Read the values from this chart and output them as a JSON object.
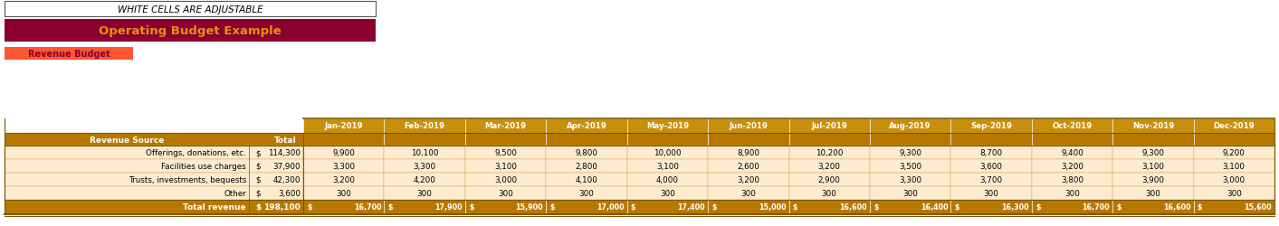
{
  "title_banner_text": "WHITE CELLS ARE ADJUSTABLE",
  "operating_title": "Operating Budget Example",
  "operating_bg": "#8B0030",
  "operating_text_color": "#E8900A",
  "revenue_budget_text": "Revenue Budget",
  "revenue_budget_bg": "#FF5533",
  "revenue_budget_text_color": "#8B0030",
  "months": [
    "Jan-2019",
    "Feb-2019",
    "Mar-2019",
    "Apr-2019",
    "May-2019",
    "Jun-2019",
    "Jul-2019",
    "Aug-2019",
    "Sep-2019",
    "Oct-2019",
    "Nov-2019",
    "Dec-2019"
  ],
  "month_header_bg": "#C8900A",
  "month_header_text_color": "#ffffff",
  "row_header_bg": "#B87800",
  "row_header_text_color": "#ffffff",
  "data_bg": "#FDEBD0",
  "total_row_bg": "#B87800",
  "total_row_text_color": "#ffffff",
  "row_labels": [
    "Offerings, donations, etc.",
    "Facilities use charges",
    "Trusts, investments, bequests",
    "Other"
  ],
  "totals": [
    "114,300",
    "37,900",
    "42,300",
    "3,600"
  ],
  "monthly_data": [
    [
      "9,900",
      "10,100",
      "9,500",
      "9,800",
      "10,000",
      "8,900",
      "10,200",
      "9,300",
      "8,700",
      "9,400",
      "9,300",
      "9,200"
    ],
    [
      "3,300",
      "3,300",
      "3,100",
      "2,800",
      "3,100",
      "2,600",
      "3,200",
      "3,500",
      "3,600",
      "3,200",
      "3,100",
      "3,100"
    ],
    [
      "3,200",
      "4,200",
      "3,000",
      "4,100",
      "4,000",
      "3,200",
      "2,900",
      "3,300",
      "3,700",
      "3,800",
      "3,900",
      "3,000"
    ],
    [
      "300",
      "300",
      "300",
      "300",
      "300",
      "300",
      "300",
      "300",
      "300",
      "300",
      "300",
      "300"
    ]
  ],
  "grand_total": "198,100",
  "monthly_totals": [
    "16,700",
    "17,900",
    "15,900",
    "17,000",
    "17,400",
    "15,000",
    "16,600",
    "16,400",
    "16,300",
    "16,700",
    "16,600",
    "15,600"
  ],
  "bg_color": "#ffffff",
  "border_dark": "#7B5800",
  "cell_border": "#D4A050"
}
